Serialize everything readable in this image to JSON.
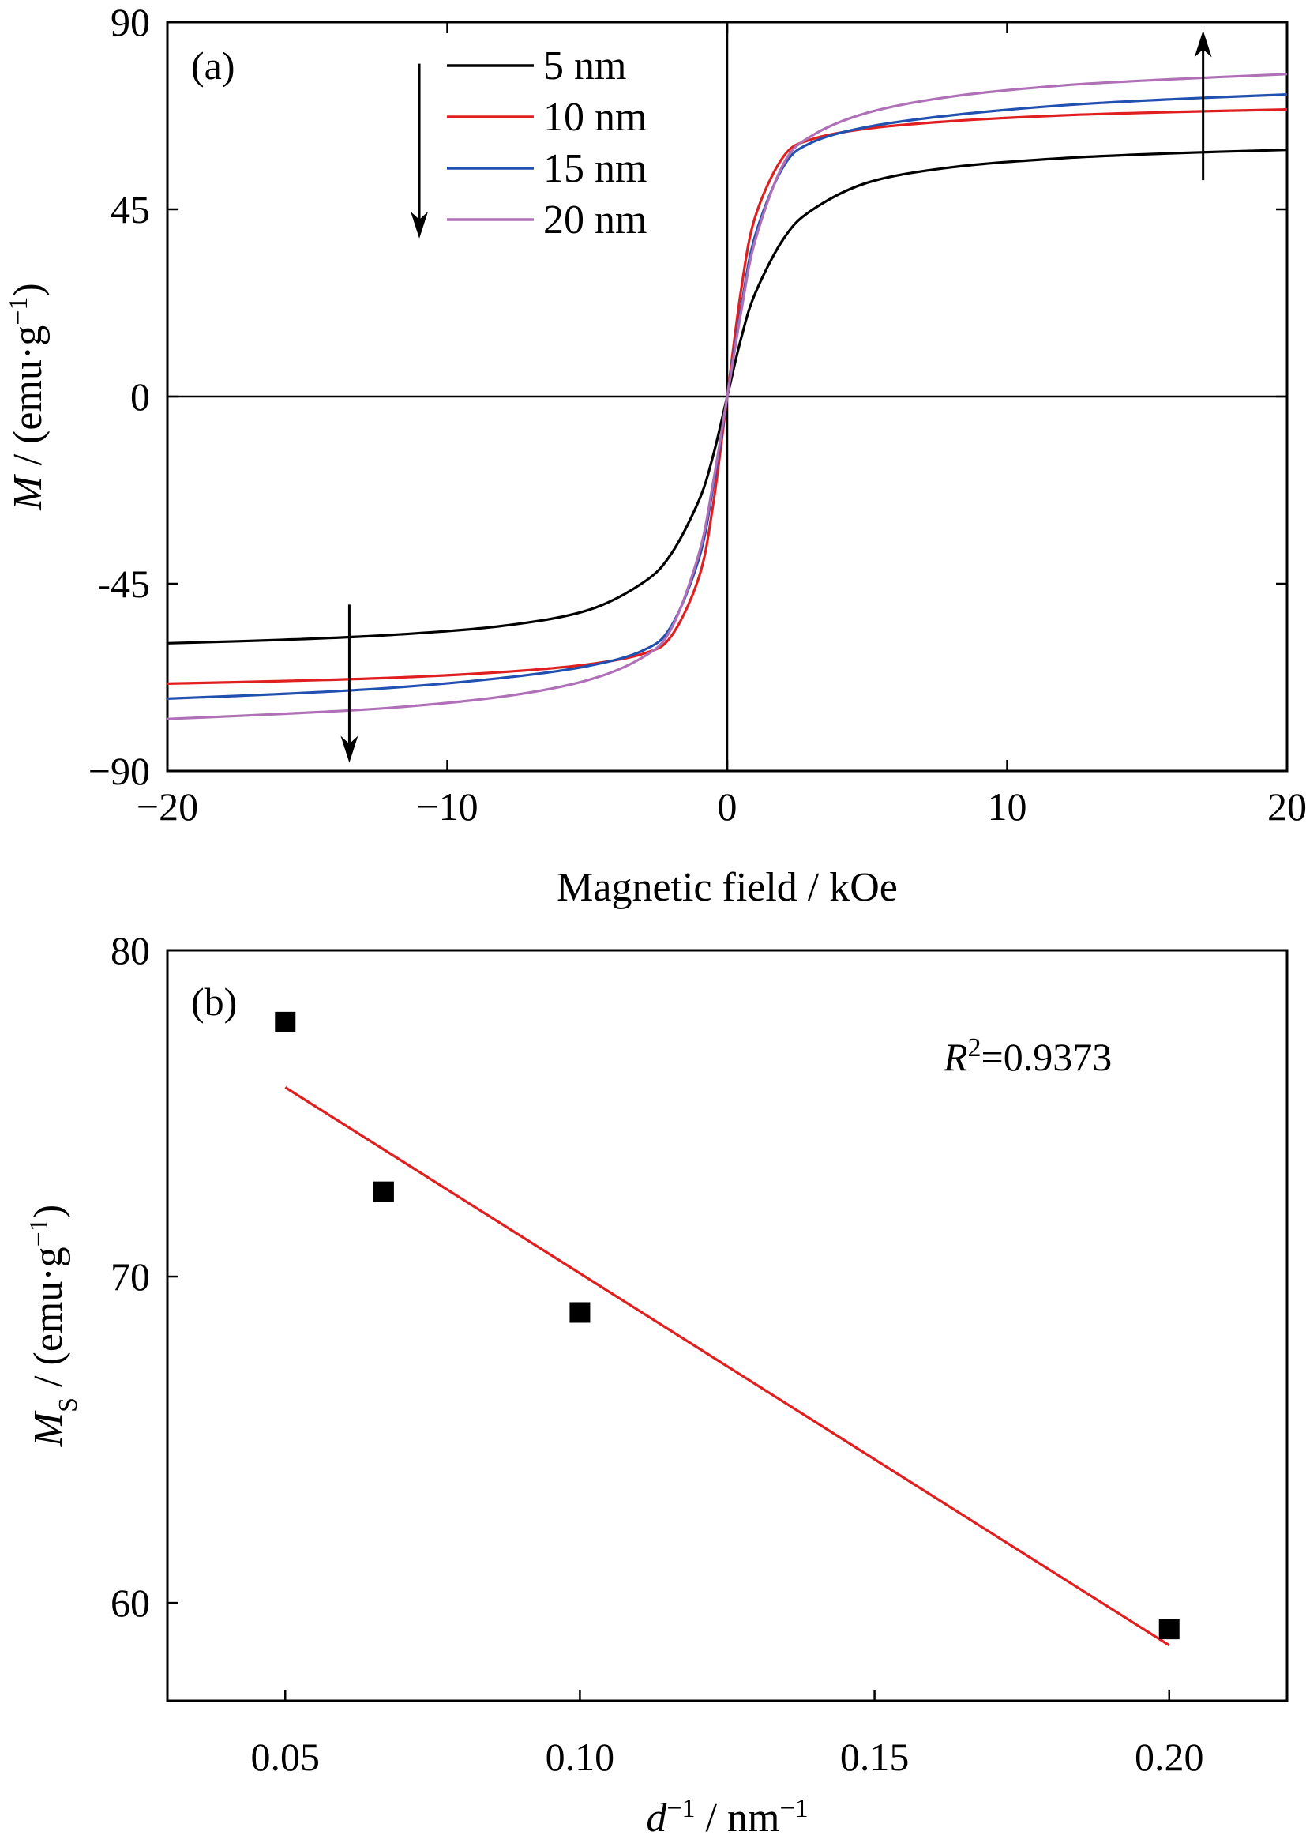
{
  "chart_data": [
    {
      "type": "line",
      "panel_label": "(a)",
      "xlabel": "Magnetic field / kOe",
      "ylabel_symbol": "M",
      "ylabel_unit": " / (emu·g",
      "ylabel_sup": "−1",
      "ylabel_close": ")",
      "xlim": [
        -20,
        20
      ],
      "ylim": [
        -90,
        90
      ],
      "xticks": [
        -20,
        -10,
        0,
        10,
        20
      ],
      "xtick_labels": [
        "−20",
        "−10",
        "0",
        "10",
        "20"
      ],
      "yticks": [
        -90,
        -45,
        0,
        45,
        90
      ],
      "ytick_labels": [
        "−90",
        "-45",
        "0",
        "45",
        "90"
      ],
      "grid": false,
      "legend_position": "top-left",
      "x": [
        -20,
        -16,
        -12,
        -8,
        -5,
        -3,
        -2,
        -1,
        -0.5,
        0,
        0.5,
        1,
        2,
        3,
        5,
        8,
        12,
        16,
        20
      ],
      "series": [
        {
          "name": "5 nm",
          "color": "#000000",
          "values": [
            -59.3,
            -58.5,
            -57.3,
            -55.1,
            -51.4,
            -44.7,
            -37.8,
            -24.8,
            -14.1,
            0,
            14.1,
            24.8,
            37.8,
            44.7,
            51.4,
            55.1,
            57.3,
            58.5,
            59.3
          ]
        },
        {
          "name": "10 nm",
          "color": "#e02020",
          "values": [
            -69.0,
            -68.4,
            -67.6,
            -66.2,
            -64.4,
            -61.8,
            -57.6,
            -43.2,
            -25.8,
            0,
            25.8,
            43.2,
            57.6,
            61.8,
            64.4,
            66.2,
            67.6,
            68.4,
            69.0
          ]
        },
        {
          "name": "15 nm",
          "color": "#2050b0",
          "values": [
            -72.6,
            -71.5,
            -70.0,
            -67.6,
            -64.8,
            -61.0,
            -55.2,
            -38.7,
            -21.5,
            0,
            21.5,
            38.7,
            55.2,
            61.0,
            64.8,
            67.6,
            70.0,
            71.5,
            72.6
          ]
        },
        {
          "name": "20 nm",
          "color": "#b070b8",
          "values": [
            -77.5,
            -76.3,
            -74.8,
            -72.1,
            -68.2,
            -62.6,
            -55.8,
            -37.5,
            -20.5,
            0,
            20.5,
            37.5,
            55.8,
            62.6,
            68.2,
            72.1,
            74.8,
            76.3,
            77.5
          ]
        }
      ],
      "arrows": [
        {
          "x": -11,
          "y_from": 80,
          "y_to": 38,
          "direction": "down"
        },
        {
          "x": -13.5,
          "y_from": -50,
          "y_to": -88,
          "direction": "down"
        },
        {
          "x": 17,
          "y_from": 52,
          "y_to": 88,
          "direction": "up"
        }
      ]
    },
    {
      "type": "scatter",
      "panel_label": "(b)",
      "xlabel_symbol": "d",
      "xlabel_sup": "−1",
      "xlabel_unit": " / nm",
      "xlabel_unit_sup": "−1",
      "ylabel_symbol": "M",
      "ylabel_sub": "S",
      "ylabel_unit": " / (emu·g",
      "ylabel_sup": "−1",
      "ylabel_close": ")",
      "xlim": [
        0.03,
        0.22
      ],
      "ylim": [
        57,
        80
      ],
      "xticks": [
        0.05,
        0.1,
        0.15,
        0.2
      ],
      "xtick_labels": [
        "0.05",
        "0.10",
        "0.15",
        "0.20"
      ],
      "yticks": [
        60,
        70,
        80
      ],
      "ytick_labels": [
        "60",
        "70",
        "80"
      ],
      "grid": false,
      "points": [
        {
          "x": 0.05,
          "y": 77.8
        },
        {
          "x": 0.0667,
          "y": 72.6
        },
        {
          "x": 0.1,
          "y": 68.9
        },
        {
          "x": 0.2,
          "y": 59.2
        }
      ],
      "fit": {
        "x": [
          0.05,
          0.2
        ],
        "y": [
          75.8,
          58.7
        ],
        "color": "#e02020"
      },
      "annotation_symbol": "R",
      "annotation_sup": "2",
      "annotation_value": "=0.9373"
    }
  ]
}
